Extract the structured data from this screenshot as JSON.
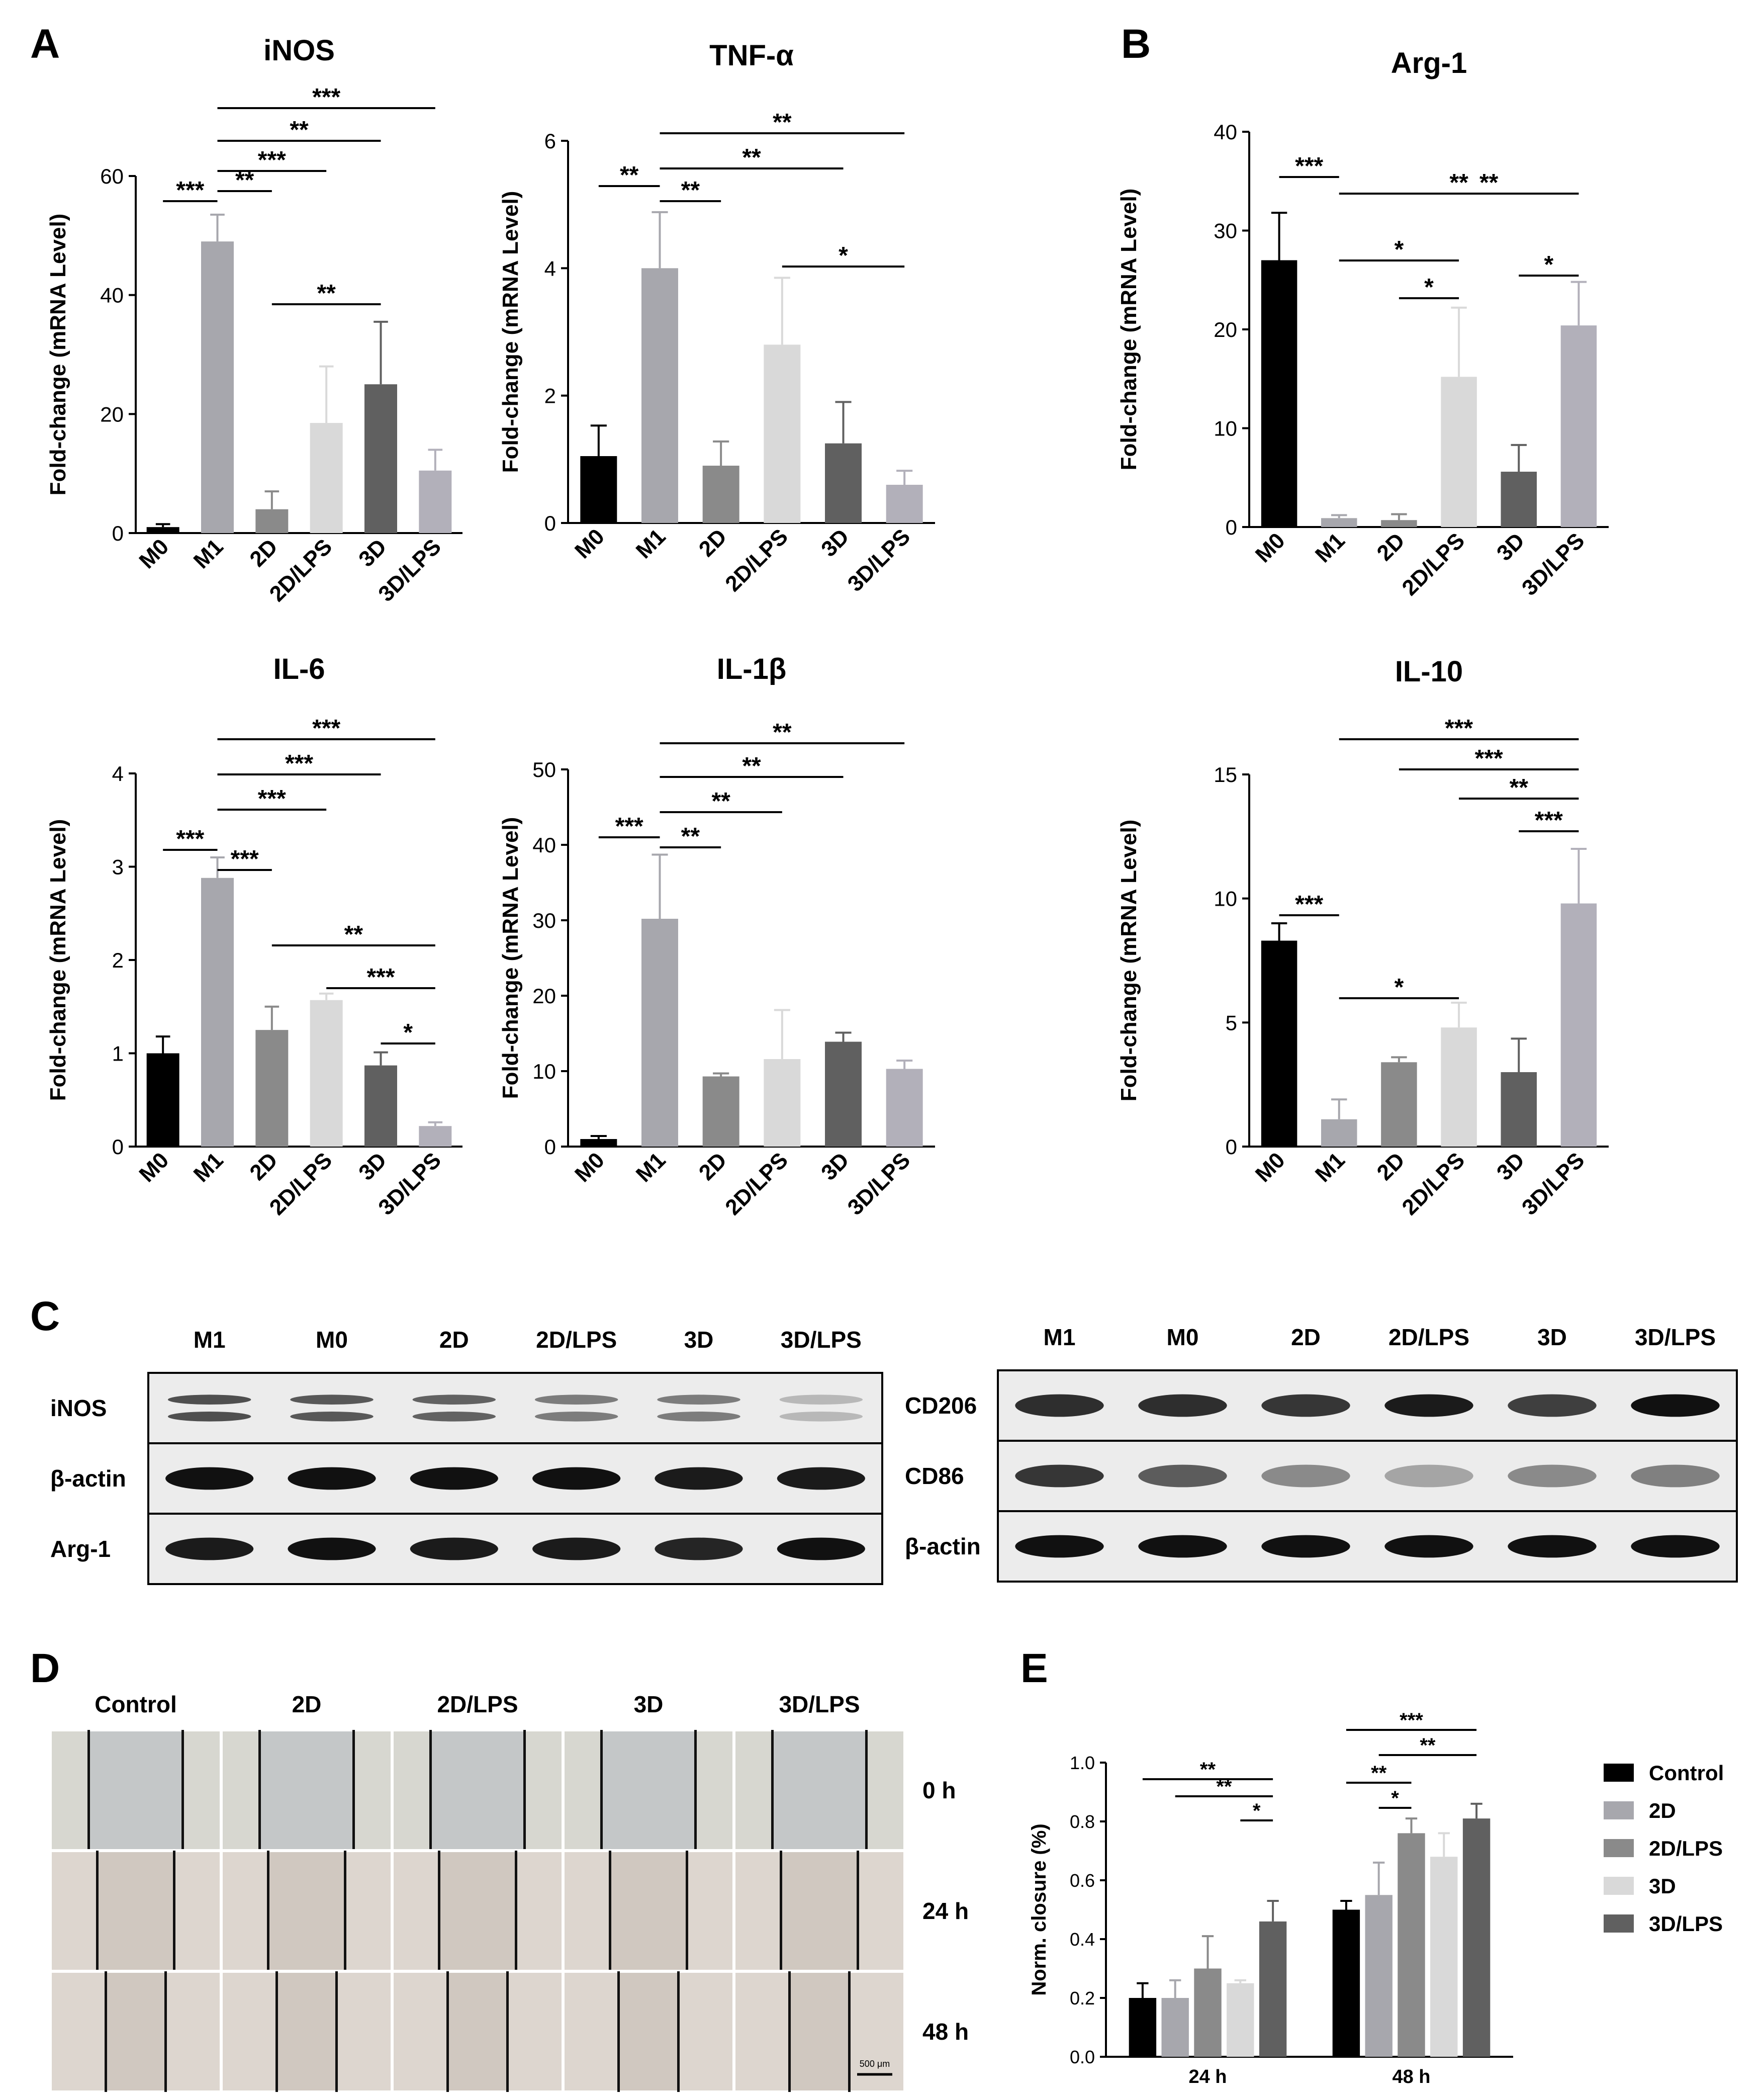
{
  "panel_labels": [
    "A",
    "B",
    "C",
    "D",
    "E"
  ],
  "colors": {
    "black": "#000000",
    "gray_light": "#a7a7ad",
    "gray_mid": "#8a8a8a",
    "gray_very_light": "#d9d9d9",
    "gray_dark": "#606060",
    "gray_lilac": "#b2b0ba"
  },
  "chart_data": [
    {
      "type": "bar",
      "panel": "A",
      "title": "iNOS",
      "ylabel": "Fold-change (mRNA Level)",
      "categories": [
        "M0",
        "M1",
        "2D",
        "2D/LPS",
        "3D",
        "3D/LPS"
      ],
      "values": [
        1,
        49,
        4,
        18.5,
        25,
        10.5
      ],
      "errors": [
        0.5,
        4.5,
        3,
        9.5,
        10.5,
        3.5
      ],
      "ylim": [
        0,
        60
      ],
      "yticks": [
        0,
        20,
        40,
        60
      ],
      "colors": [
        "#000000",
        "#a7a7ad",
        "#8a8a8a",
        "#d9d9d9",
        "#606060",
        "#b2b0ba"
      ],
      "significance": [
        {
          "from": 0,
          "to": 1,
          "label": "***"
        },
        {
          "from": 1,
          "to": 2,
          "label": "**"
        },
        {
          "from": 1,
          "to": 3,
          "label": "***"
        },
        {
          "from": 1,
          "to": 4,
          "label": "**"
        },
        {
          "from": 1,
          "to": 5,
          "label": "***"
        },
        {
          "from": 2,
          "to": 4,
          "label": "**"
        }
      ]
    },
    {
      "type": "bar",
      "panel": "A",
      "title": "TNF-α",
      "ylabel": "Fold-change (mRNA Level)",
      "categories": [
        "M0",
        "M1",
        "2D",
        "2D/LPS",
        "3D",
        "3D/LPS"
      ],
      "values": [
        1.05,
        4.0,
        0.9,
        2.8,
        1.25,
        0.6
      ],
      "errors": [
        0.48,
        0.88,
        0.38,
        1.05,
        0.65,
        0.22
      ],
      "ylim": [
        0,
        6
      ],
      "yticks": [
        0,
        2,
        4,
        6
      ],
      "colors": [
        "#000000",
        "#a7a7ad",
        "#8a8a8a",
        "#d9d9d9",
        "#606060",
        "#b2b0ba"
      ],
      "significance": [
        {
          "from": 0,
          "to": 1,
          "label": "**"
        },
        {
          "from": 1,
          "to": 2,
          "label": "**"
        },
        {
          "from": 1,
          "to": 4,
          "label": "**"
        },
        {
          "from": 1,
          "to": 5,
          "label": "**"
        },
        {
          "from": 3,
          "to": 5,
          "label": "*"
        }
      ]
    },
    {
      "type": "bar",
      "panel": "B",
      "title": "Arg-1",
      "ylabel": "Fold-change (mRNA Level)",
      "categories": [
        "M0",
        "M1",
        "2D",
        "2D/LPS",
        "3D",
        "3D/LPS"
      ],
      "values": [
        27,
        0.9,
        0.7,
        15.2,
        5.6,
        20.4
      ],
      "errors": [
        4.8,
        0.3,
        0.6,
        7,
        2.7,
        4.4
      ],
      "ylim": [
        0,
        40
      ],
      "yticks": [
        0,
        10,
        20,
        30,
        40
      ],
      "colors": [
        "#000000",
        "#a7a7ad",
        "#8a8a8a",
        "#d9d9d9",
        "#606060",
        "#b2b0ba"
      ],
      "significance": [
        {
          "from": 0,
          "to": 1,
          "label": "***"
        },
        {
          "from": 1,
          "to": 5,
          "label": "**"
        },
        {
          "from": 2,
          "to": 5,
          "label": "**"
        },
        {
          "from": 1,
          "to": 3,
          "label": "*"
        },
        {
          "from": 2,
          "to": 3,
          "label": "*"
        },
        {
          "from": 4,
          "to": 5,
          "label": "*"
        }
      ]
    },
    {
      "type": "bar",
      "panel": "A",
      "title": "IL-6",
      "ylabel": "Fold-change (mRNA Level)",
      "categories": [
        "M0",
        "M1",
        "2D",
        "2D/LPS",
        "3D",
        "3D/LPS"
      ],
      "values": [
        1.0,
        2.88,
        1.25,
        1.57,
        0.87,
        0.22
      ],
      "errors": [
        0.18,
        0.22,
        0.25,
        0.07,
        0.14,
        0.04
      ],
      "ylim": [
        0,
        4
      ],
      "yticks": [
        0,
        1,
        2,
        3,
        4
      ],
      "colors": [
        "#000000",
        "#a7a7ad",
        "#8a8a8a",
        "#d9d9d9",
        "#606060",
        "#b2b0ba"
      ],
      "significance": [
        {
          "from": 0,
          "to": 1,
          "label": "***"
        },
        {
          "from": 1,
          "to": 2,
          "label": "***"
        },
        {
          "from": 1,
          "to": 3,
          "label": "***"
        },
        {
          "from": 1,
          "to": 4,
          "label": "***"
        },
        {
          "from": 1,
          "to": 5,
          "label": "***"
        },
        {
          "from": 2,
          "to": 5,
          "label": "**"
        },
        {
          "from": 3,
          "to": 5,
          "label": "***"
        },
        {
          "from": 4,
          "to": 5,
          "label": "*"
        }
      ]
    },
    {
      "type": "bar",
      "panel": "A",
      "title": "IL-1β",
      "ylabel": "Fold-change (mRNA Level)",
      "categories": [
        "M0",
        "M1",
        "2D",
        "2D/LPS",
        "3D",
        "3D/LPS"
      ],
      "values": [
        1,
        30.2,
        9.3,
        11.6,
        13.9,
        10.3
      ],
      "errors": [
        0.4,
        8.5,
        0.4,
        6.5,
        1.2,
        1.1
      ],
      "ylim": [
        0,
        50
      ],
      "yticks": [
        0,
        10,
        20,
        30,
        40,
        50
      ],
      "colors": [
        "#000000",
        "#a7a7ad",
        "#8a8a8a",
        "#d9d9d9",
        "#606060",
        "#b2b0ba"
      ],
      "significance": [
        {
          "from": 0,
          "to": 1,
          "label": "***"
        },
        {
          "from": 1,
          "to": 2,
          "label": "**"
        },
        {
          "from": 1,
          "to": 3,
          "label": "**"
        },
        {
          "from": 1,
          "to": 4,
          "label": "**"
        },
        {
          "from": 1,
          "to": 5,
          "label": "**"
        }
      ]
    },
    {
      "type": "bar",
      "panel": "B",
      "title": "IL-10",
      "ylabel": "Fold-change (mRNA Level)",
      "categories": [
        "M0",
        "M1",
        "2D",
        "2D/LPS",
        "3D",
        "3D/LPS"
      ],
      "values": [
        8.3,
        1.1,
        3.4,
        4.8,
        3.0,
        9.8
      ],
      "errors": [
        0.7,
        0.8,
        0.2,
        1.0,
        1.35,
        2.2
      ],
      "ylim": [
        0,
        15
      ],
      "yticks": [
        0,
        5,
        10,
        15
      ],
      "colors": [
        "#000000",
        "#a7a7ad",
        "#8a8a8a",
        "#d9d9d9",
        "#606060",
        "#b2b0ba"
      ],
      "significance": [
        {
          "from": 0,
          "to": 1,
          "label": "***"
        },
        {
          "from": 1,
          "to": 5,
          "label": "***"
        },
        {
          "from": 2,
          "to": 5,
          "label": "***"
        },
        {
          "from": 3,
          "to": 5,
          "label": "**"
        },
        {
          "from": 4,
          "to": 5,
          "label": "***"
        },
        {
          "from": 1,
          "to": 3,
          "label": "*"
        }
      ]
    },
    {
      "type": "bar",
      "panel": "E",
      "title": "",
      "ylabel": "Norm. closure (%)",
      "categories": [
        "24 h",
        "48 h"
      ],
      "series": [
        {
          "name": "Control",
          "values": [
            0.2,
            0.5
          ],
          "errors": [
            0.05,
            0.03
          ],
          "color": "#000000"
        },
        {
          "name": "2D",
          "values": [
            0.2,
            0.55
          ],
          "errors": [
            0.06,
            0.11
          ],
          "color": "#a7a7ad"
        },
        {
          "name": "2D/LPS",
          "values": [
            0.3,
            0.76
          ],
          "errors": [
            0.11,
            0.05
          ],
          "color": "#8a8a8a"
        },
        {
          "name": "3D",
          "values": [
            0.25,
            0.68
          ],
          "errors": [
            0.01,
            0.08
          ],
          "color": "#d9d9d9"
        },
        {
          "name": "3D/LPS",
          "values": [
            0.46,
            0.81
          ],
          "errors": [
            0.07,
            0.05
          ],
          "color": "#606060"
        }
      ],
      "ylim": [
        0,
        1.0
      ],
      "yticks": [
        "0.0",
        "0.2",
        "0.4",
        "0.6",
        "0.8",
        "1.0"
      ],
      "legend": "right",
      "significance": [
        {
          "group": 0,
          "from": 0,
          "to": 4,
          "label": "**"
        },
        {
          "group": 0,
          "from": 1,
          "to": 4,
          "label": "**"
        },
        {
          "group": 0,
          "from": 3,
          "to": 4,
          "label": "*"
        },
        {
          "group": 1,
          "from": 0,
          "to": 4,
          "label": "***"
        },
        {
          "group": 1,
          "from": 1,
          "to": 4,
          "label": "**"
        },
        {
          "group": 1,
          "from": 0,
          "to": 2,
          "label": "**"
        },
        {
          "group": 1,
          "from": 1,
          "to": 2,
          "label": "*"
        }
      ]
    }
  ],
  "western_blot": {
    "left": {
      "columns": [
        "M1",
        "M0",
        "2D",
        "2D/LPS",
        "3D",
        "3D/LPS"
      ],
      "rows": [
        {
          "label": "iNOS",
          "bands": [
            0.7,
            0.65,
            0.6,
            0.45,
            0.45,
            0.12
          ],
          "double": true
        },
        {
          "label": "β-actin",
          "bands": [
            1,
            1,
            1,
            1,
            0.95,
            0.95
          ],
          "double": false
        },
        {
          "label": "Arg-1",
          "bands": [
            0.95,
            1,
            0.95,
            0.95,
            0.9,
            1
          ],
          "double": false
        }
      ]
    },
    "right": {
      "columns": [
        "M1",
        "M0",
        "2D",
        "2D/LPS",
        "3D",
        "3D/LPS"
      ],
      "rows": [
        {
          "label": "CD206",
          "bands": [
            0.85,
            0.85,
            0.8,
            0.95,
            0.75,
            1
          ],
          "double": false
        },
        {
          "label": "CD86",
          "bands": [
            0.8,
            0.6,
            0.35,
            0.2,
            0.35,
            0.4
          ],
          "double": false
        },
        {
          "label": "β-actin",
          "bands": [
            1,
            1,
            1,
            1,
            1,
            1
          ],
          "double": false
        }
      ]
    }
  },
  "migration": {
    "columns": [
      "Control",
      "2D",
      "2D/LPS",
      "3D",
      "3D/LPS"
    ],
    "rows": [
      "0 h",
      "24 h",
      "48 h"
    ],
    "scale_bar": "500 μm"
  }
}
